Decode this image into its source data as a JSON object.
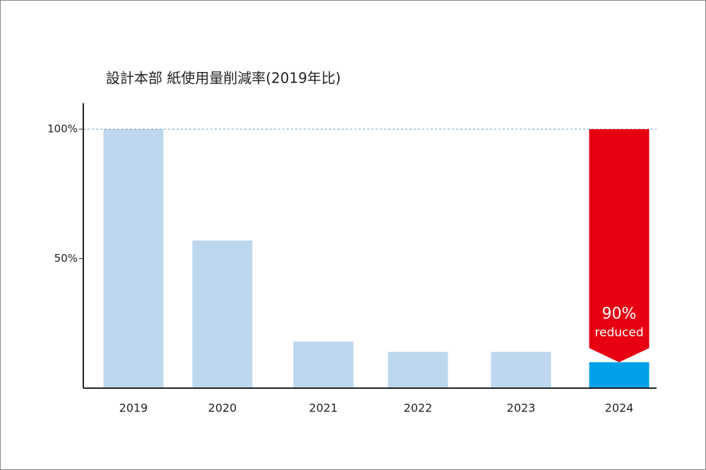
{
  "chart_data": {
    "type": "bar",
    "title": "設計本部 紙使用量削減率(2019年比)",
    "categories": [
      "2019",
      "2020",
      "2021",
      "2022",
      "2023",
      "2024"
    ],
    "values": [
      100,
      57,
      18,
      14,
      14,
      10
    ],
    "colors": [
      "#bdd7ee",
      "#bdd7ee",
      "#bdd7ee",
      "#bdd7ee",
      "#bdd7ee",
      "#00a0e9"
    ],
    "ylim": [
      0,
      110
    ],
    "yticks": [
      {
        "value": 50,
        "label": "50%"
      },
      {
        "value": 100,
        "label": "100%"
      }
    ],
    "reference_line": 100,
    "annotation": {
      "amount": "90%",
      "label": "reduced",
      "color": "#e60012"
    }
  }
}
